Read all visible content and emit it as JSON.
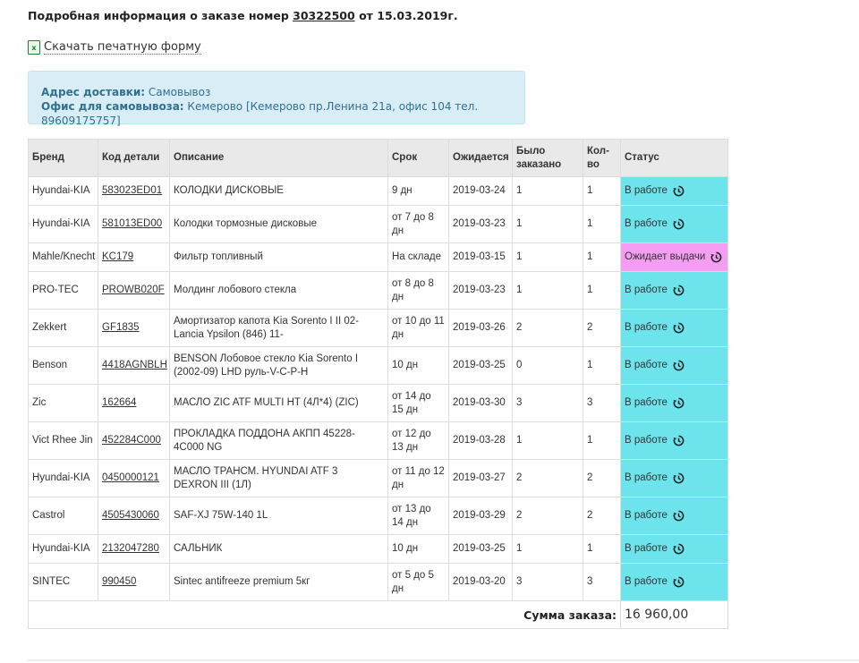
{
  "header": {
    "prefix": "Подробная информация о заказе номер",
    "order_number": "30322500",
    "suffix": "от 15.03.2019г."
  },
  "download": {
    "icon": "excel-file-icon",
    "label": "Скачать печатную форму"
  },
  "delivery": {
    "address_label": "Адрес доставки:",
    "address_value": "Самовывоз",
    "office_label": "Офис для самовывоза:",
    "office_value": "Кемерово [Кемерово пр.Ленина 21а, офис 104 тел. 89609175757]"
  },
  "table": {
    "columns": [
      "Бренд",
      "Код детали",
      "Описание",
      "Срок",
      "Ожидается",
      "Было заказано",
      "Кол-во",
      "Статус"
    ],
    "rows": [
      {
        "brand": "Hyundai-KIA",
        "code": "583023ED01",
        "desc": "КОЛОДКИ ДИСКОВЫЕ",
        "term": "9 дн",
        "expected": "2019-03-24",
        "ordered": "1",
        "qty": "1",
        "status": "В работе",
        "kind": "in-work"
      },
      {
        "brand": "Hyundai-KIA",
        "code": "581013ED00",
        "desc": "Колодки тормозные дисковые",
        "term": "от 7 до 8 дн",
        "expected": "2019-03-23",
        "ordered": "1",
        "qty": "1",
        "status": "В работе",
        "kind": "in-work"
      },
      {
        "brand": "Mahle/Knecht",
        "code": "KC179",
        "desc": "Фильтр топливный",
        "term": "На складе",
        "expected": "2019-03-15",
        "ordered": "1",
        "qty": "1",
        "status": "Ожидает выдачи",
        "kind": "waiting"
      },
      {
        "brand": "PRO-TEC",
        "code": "PROWB020F",
        "desc": "Молдинг лобового стекла",
        "term": "от 8 до 8 дн",
        "expected": "2019-03-23",
        "ordered": "1",
        "qty": "1",
        "status": "В работе",
        "kind": "in-work"
      },
      {
        "brand": "Zekkert",
        "code": "GF1835",
        "desc": "Амортизатор капота Kia Sorento I II 02- Lancia Ypsilon (846) 11-",
        "term": "от 10 до 11 дн",
        "expected": "2019-03-26",
        "ordered": "2",
        "qty": "2",
        "status": "В работе",
        "kind": "in-work"
      },
      {
        "brand": "Benson",
        "code": "4418AGNBLH",
        "desc": "BENSON Лобовое стекло Kia Sorento I (2002-09) LHD руль-V-C-P-H",
        "term": "10 дн",
        "expected": "2019-03-25",
        "ordered": "0",
        "qty": "1",
        "status": "В работе",
        "kind": "in-work"
      },
      {
        "brand": "Zic",
        "code": "162664",
        "desc": "МАСЛО ZIC ATF MULTI HT (4Л*4) (ZIC)",
        "term": "от 14 до 15 дн",
        "expected": "2019-03-30",
        "ordered": "3",
        "qty": "3",
        "status": "В работе",
        "kind": "in-work"
      },
      {
        "brand": "Vict Rhee Jin",
        "code": "452284C000",
        "desc": "ПРОКЛАДКА ПОДДОНА АКПП 45228-4C000 NG",
        "term": "от 12 до 13 дн",
        "expected": "2019-03-28",
        "ordered": "1",
        "qty": "1",
        "status": "В работе",
        "kind": "in-work"
      },
      {
        "brand": "Hyundai-KIA",
        "code": "0450000121",
        "desc": "МАСЛО ТРАНСМ. HYUNDAI ATF 3 DEXRON III (1Л)",
        "term": "от 11 до 12 дн",
        "expected": "2019-03-27",
        "ordered": "2",
        "qty": "2",
        "status": "В работе",
        "kind": "in-work"
      },
      {
        "brand": "Castrol",
        "code": "4505430060",
        "desc": "SAF-XJ 75W-140 1L",
        "term": "от 13 до 14 дн",
        "expected": "2019-03-29",
        "ordered": "2",
        "qty": "2",
        "status": "В работе",
        "kind": "in-work"
      },
      {
        "brand": "Hyundai-KIA",
        "code": "2132047280",
        "desc": "САЛЬНИК",
        "term": "10 дн",
        "expected": "2019-03-25",
        "ordered": "1",
        "qty": "1",
        "status": "В работе",
        "kind": "in-work"
      },
      {
        "brand": "SINTEC",
        "code": "990450",
        "desc": "Sintec antifreeze premium 5кг",
        "term": "от 5 до 5 дн",
        "expected": "2019-03-20",
        "ordered": "3",
        "qty": "3",
        "status": "В работе",
        "kind": "in-work"
      }
    ],
    "total_label": "Сумма заказа:",
    "total_value": "16 960,00"
  },
  "colors": {
    "in_work": "#6de4ec",
    "waiting": "#f49df2",
    "info_bg": "#d9edf7",
    "info_text": "#31708f"
  },
  "status_icon": "history-icon"
}
